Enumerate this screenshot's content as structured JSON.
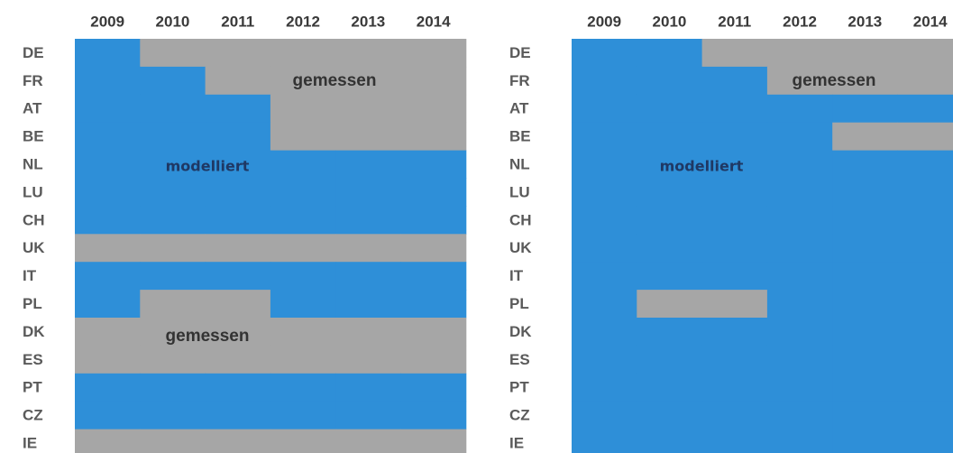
{
  "states": [
    "modelliert",
    "gemessen"
  ],
  "colors": [
    "#2e8fd8",
    "#a6a6a6"
  ],
  "panels": [
    {
      "years": [
        "2009",
        "2010",
        "2011",
        "2012",
        "2013",
        "2014"
      ],
      "rows": [
        {
          "label": "DE",
          "cells": [
            0,
            1,
            1,
            1,
            1,
            1
          ]
        },
        {
          "label": "FR",
          "cells": [
            0,
            0,
            1,
            1,
            1,
            1
          ]
        },
        {
          "label": "AT",
          "cells": [
            0,
            0,
            0,
            1,
            1,
            1
          ]
        },
        {
          "label": "BE",
          "cells": [
            0,
            0,
            0,
            1,
            1,
            1
          ]
        },
        {
          "label": "NL",
          "cells": [
            0,
            0,
            0,
            0,
            0,
            0
          ]
        },
        {
          "label": "LU",
          "cells": [
            0,
            0,
            0,
            0,
            0,
            0
          ]
        },
        {
          "label": "CH",
          "cells": [
            0,
            0,
            0,
            0,
            0,
            0
          ]
        },
        {
          "label": "UK",
          "cells": [
            1,
            1,
            1,
            1,
            1,
            1
          ]
        },
        {
          "label": "IT",
          "cells": [
            0,
            0,
            0,
            0,
            0,
            0
          ]
        },
        {
          "label": "PL",
          "cells": [
            0,
            1,
            1,
            0,
            0,
            0
          ]
        },
        {
          "label": "DK",
          "cells": [
            1,
            1,
            1,
            1,
            1,
            1
          ]
        },
        {
          "label": "ES",
          "cells": [
            1,
            1,
            1,
            1,
            1,
            1
          ]
        },
        {
          "label": "PT",
          "cells": [
            0,
            0,
            0,
            0,
            0,
            0
          ]
        },
        {
          "label": "CZ",
          "cells": [
            0,
            0,
            0,
            0,
            0,
            0
          ]
        },
        {
          "label": "IE",
          "cells": [
            1,
            1,
            1,
            1,
            1,
            1
          ]
        }
      ],
      "annotations": [
        "gemessen",
        "modelliert",
        "gemessen"
      ]
    },
    {
      "years": [
        "2009",
        "2010",
        "2011",
        "2012",
        "2013",
        "2014"
      ],
      "rows": [
        {
          "label": "DE",
          "cells": [
            0,
            0,
            1,
            1,
            1,
            1
          ]
        },
        {
          "label": "FR",
          "cells": [
            0,
            0,
            0,
            1,
            1,
            1
          ]
        },
        {
          "label": "AT",
          "cells": [
            0,
            0,
            0,
            0,
            0,
            0
          ]
        },
        {
          "label": "BE",
          "cells": [
            0,
            0,
            0,
            0,
            1,
            1
          ]
        },
        {
          "label": "NL",
          "cells": [
            0,
            0,
            0,
            0,
            0,
            0
          ]
        },
        {
          "label": "LU",
          "cells": [
            0,
            0,
            0,
            0,
            0,
            0
          ]
        },
        {
          "label": "CH",
          "cells": [
            0,
            0,
            0,
            0,
            0,
            0
          ]
        },
        {
          "label": "UK",
          "cells": [
            0,
            0,
            0,
            0,
            0,
            0
          ]
        },
        {
          "label": "IT",
          "cells": [
            0,
            0,
            0,
            0,
            0,
            0
          ]
        },
        {
          "label": "PL",
          "cells": [
            0,
            1,
            1,
            0,
            0,
            0
          ]
        },
        {
          "label": "DK",
          "cells": [
            0,
            0,
            0,
            0,
            0,
            0
          ]
        },
        {
          "label": "ES",
          "cells": [
            0,
            0,
            0,
            0,
            0,
            0
          ]
        },
        {
          "label": "PT",
          "cells": [
            0,
            0,
            0,
            0,
            0,
            0
          ]
        },
        {
          "label": "CZ",
          "cells": [
            0,
            0,
            0,
            0,
            0,
            0
          ]
        },
        {
          "label": "IE",
          "cells": [
            0,
            0,
            0,
            0,
            0,
            0
          ]
        }
      ],
      "annotations": [
        "gemessen",
        "modelliert"
      ]
    }
  ]
}
